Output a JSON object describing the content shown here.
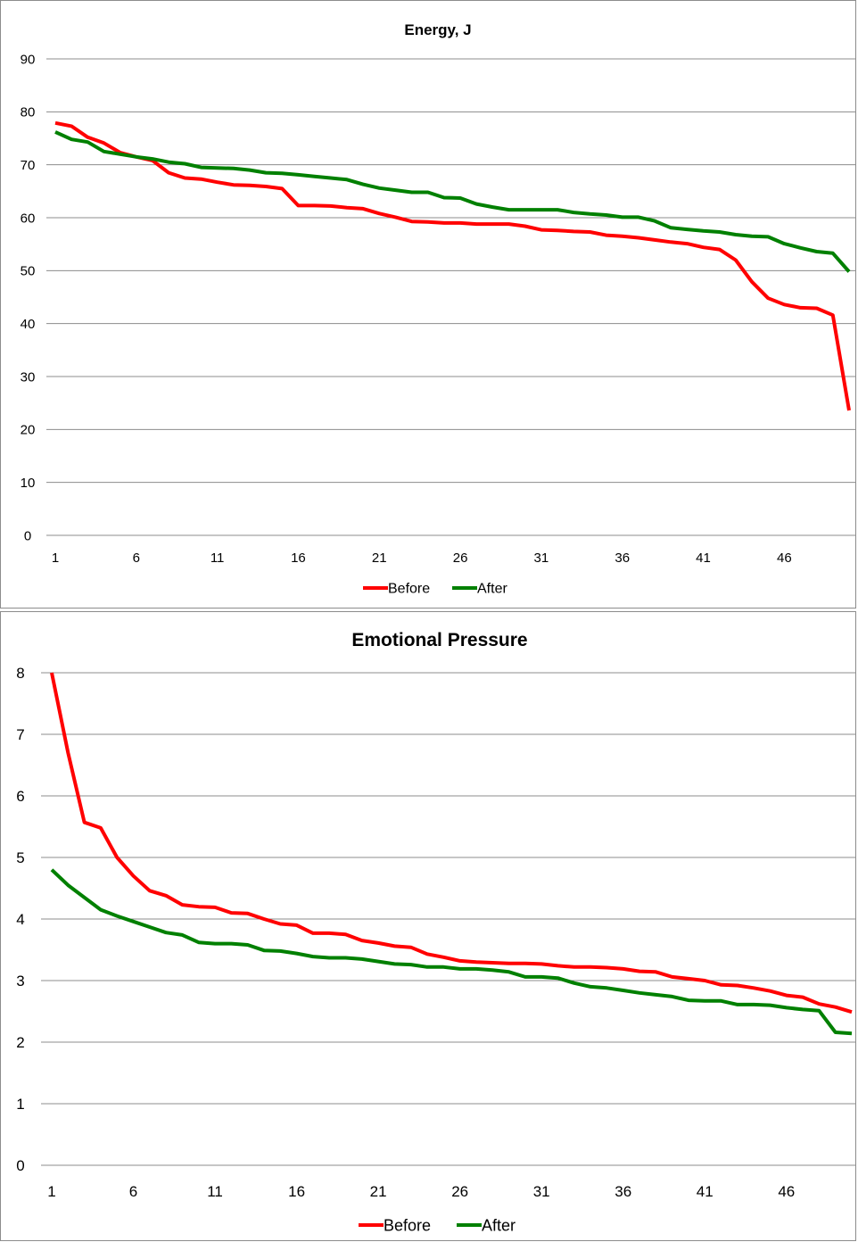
{
  "chart_data": [
    {
      "type": "line",
      "title": "Energy, J",
      "xlabel": "",
      "ylabel": "",
      "ylim": [
        0,
        90
      ],
      "yticks": [
        0,
        10,
        20,
        30,
        40,
        50,
        60,
        70,
        80,
        90
      ],
      "xtick_labels": [
        "1",
        "6",
        "11",
        "16",
        "21",
        "26",
        "31",
        "36",
        "41",
        "46"
      ],
      "grid": true,
      "legend_position": "bottom",
      "x": [
        1,
        2,
        3,
        4,
        5,
        6,
        7,
        8,
        9,
        10,
        11,
        12,
        13,
        14,
        15,
        16,
        17,
        18,
        19,
        20,
        21,
        22,
        23,
        24,
        25,
        26,
        27,
        28,
        29,
        30,
        31,
        32,
        33,
        34,
        35,
        36,
        37,
        38,
        39,
        40,
        41,
        42,
        43,
        44,
        45,
        46,
        47,
        48,
        49,
        50
      ],
      "series": [
        {
          "name": "Before",
          "color": "#ff0000",
          "values": [
            77.9,
            77.3,
            75.2,
            74.1,
            72.3,
            71.5,
            70.8,
            68.5,
            67.5,
            67.3,
            66.7,
            66.2,
            66.1,
            65.9,
            65.5,
            62.3,
            62.3,
            62.2,
            61.9,
            61.7,
            60.8,
            60.1,
            59.3,
            59.2,
            59.0,
            59.0,
            58.8,
            58.8,
            58.8,
            58.4,
            57.7,
            57.6,
            57.4,
            57.3,
            56.7,
            56.5,
            56.2,
            55.8,
            55.4,
            55.1,
            54.4,
            54.0,
            52.0,
            47.9,
            44.8,
            43.6,
            43.0,
            42.9,
            41.6,
            23.6
          ]
        },
        {
          "name": "After",
          "color": "#008000",
          "values": [
            76.2,
            74.8,
            74.3,
            72.5,
            72.0,
            71.5,
            71.1,
            70.5,
            70.2,
            69.5,
            69.4,
            69.3,
            69.0,
            68.5,
            68.4,
            68.1,
            67.8,
            67.5,
            67.2,
            66.3,
            65.6,
            65.2,
            64.8,
            64.8,
            63.8,
            63.7,
            62.6,
            62.0,
            61.5,
            61.5,
            61.5,
            61.5,
            61.0,
            60.7,
            60.5,
            60.1,
            60.1,
            59.4,
            58.1,
            57.8,
            57.5,
            57.3,
            56.8,
            56.5,
            56.4,
            55.1,
            54.3,
            53.6,
            53.3,
            49.8
          ]
        }
      ]
    },
    {
      "type": "line",
      "title": "Emotional Pressure",
      "xlabel": "",
      "ylabel": "",
      "ylim": [
        0,
        8
      ],
      "yticks": [
        0,
        1,
        2,
        3,
        4,
        5,
        6,
        7,
        8
      ],
      "xtick_labels": [
        "1",
        "6",
        "11",
        "16",
        "21",
        "26",
        "31",
        "36",
        "41",
        "46"
      ],
      "grid": true,
      "legend_position": "bottom",
      "x": [
        1,
        2,
        3,
        4,
        5,
        6,
        7,
        8,
        9,
        10,
        11,
        12,
        13,
        14,
        15,
        16,
        17,
        18,
        19,
        20,
        21,
        22,
        23,
        24,
        25,
        26,
        27,
        28,
        29,
        30,
        31,
        32,
        33,
        34,
        35,
        36,
        37,
        38,
        39,
        40,
        41,
        42,
        43,
        44,
        45,
        46,
        47,
        48,
        49,
        50
      ],
      "series": [
        {
          "name": "Before",
          "color": "#ff0000",
          "values": [
            8.0,
            6.7,
            5.57,
            5.48,
            5.0,
            4.7,
            4.46,
            4.38,
            4.23,
            4.2,
            4.19,
            4.1,
            4.09,
            4.0,
            3.92,
            3.9,
            3.77,
            3.77,
            3.75,
            3.65,
            3.61,
            3.56,
            3.54,
            3.43,
            3.38,
            3.32,
            3.3,
            3.29,
            3.28,
            3.28,
            3.27,
            3.24,
            3.22,
            3.22,
            3.21,
            3.19,
            3.15,
            3.14,
            3.06,
            3.03,
            3.0,
            2.93,
            2.92,
            2.88,
            2.83,
            2.76,
            2.73,
            2.62,
            2.57,
            2.49
          ]
        },
        {
          "name": "After",
          "color": "#008000",
          "values": [
            4.8,
            4.55,
            4.35,
            4.15,
            4.05,
            3.96,
            3.87,
            3.78,
            3.74,
            3.62,
            3.6,
            3.6,
            3.58,
            3.49,
            3.48,
            3.44,
            3.39,
            3.37,
            3.37,
            3.35,
            3.31,
            3.27,
            3.26,
            3.22,
            3.22,
            3.19,
            3.19,
            3.17,
            3.14,
            3.06,
            3.06,
            3.04,
            2.96,
            2.9,
            2.88,
            2.84,
            2.8,
            2.77,
            2.74,
            2.68,
            2.67,
            2.67,
            2.61,
            2.61,
            2.6,
            2.56,
            2.53,
            2.51,
            2.16,
            2.14
          ]
        }
      ]
    }
  ]
}
